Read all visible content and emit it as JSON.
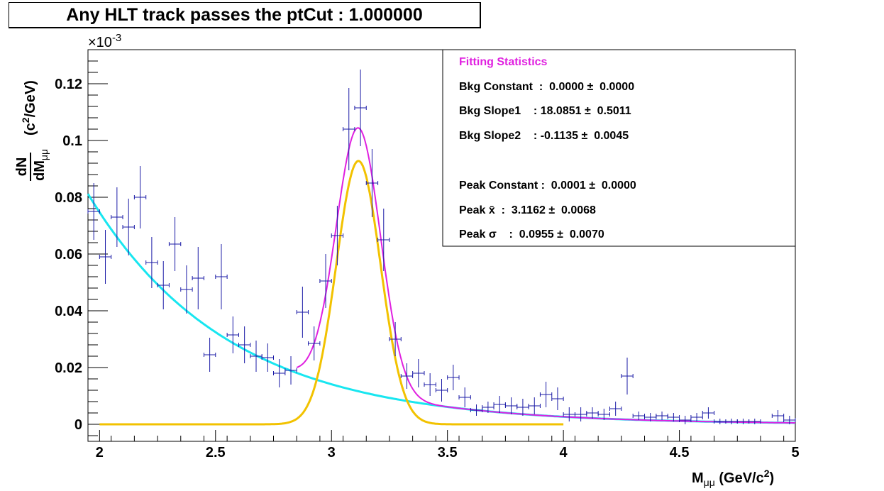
{
  "chart_data": {
    "type": "scatter",
    "title": "Any HLT track passes the ptCut : 1.000000",
    "xlabel": {
      "main": "M",
      "sub": "μμ",
      "unit": "(GeV/c",
      "sup": "2",
      "close": ")"
    },
    "ylabel": {
      "num": "dN",
      "den": "dM",
      "den_sub": "μμ",
      "unit": "(c",
      "sup": "2",
      "close": "/GeV)"
    },
    "xlim": [
      1.95,
      5.0
    ],
    "ylim": [
      -0.006,
      0.132
    ],
    "y_scale_label": "×10",
    "y_scale_exponent": "-3",
    "x_ticks": [
      2,
      2.5,
      3,
      3.5,
      4,
      4.5,
      5
    ],
    "x_tick_labels": [
      "2",
      "2.5",
      "3",
      "3.5",
      "4",
      "4.5",
      "5"
    ],
    "y_ticks": [
      0,
      0.02,
      0.04,
      0.06,
      0.08,
      0.1,
      0.12
    ],
    "y_tick_labels": [
      "0",
      "0.02",
      "0.04",
      "0.06",
      "0.08",
      "0.1",
      "0.12"
    ],
    "bin_half_width": 0.025,
    "points": [
      {
        "x": 1.975,
        "y": 0.075,
        "e": 0.01
      },
      {
        "x": 2.025,
        "y": 0.059,
        "e": 0.0095
      },
      {
        "x": 2.075,
        "y": 0.073,
        "e": 0.0105
      },
      {
        "x": 2.125,
        "y": 0.0695,
        "e": 0.01
      },
      {
        "x": 2.175,
        "y": 0.08,
        "e": 0.011
      },
      {
        "x": 2.225,
        "y": 0.057,
        "e": 0.009
      },
      {
        "x": 2.275,
        "y": 0.049,
        "e": 0.0085
      },
      {
        "x": 2.325,
        "y": 0.0635,
        "e": 0.0095
      },
      {
        "x": 2.375,
        "y": 0.0475,
        "e": 0.0085
      },
      {
        "x": 2.425,
        "y": 0.0515,
        "e": 0.011
      },
      {
        "x": 2.475,
        "y": 0.0245,
        "e": 0.006
      },
      {
        "x": 2.525,
        "y": 0.052,
        "e": 0.0115
      },
      {
        "x": 2.575,
        "y": 0.0315,
        "e": 0.0065
      },
      {
        "x": 2.625,
        "y": 0.028,
        "e": 0.0065
      },
      {
        "x": 2.675,
        "y": 0.024,
        "e": 0.0055
      },
      {
        "x": 2.725,
        "y": 0.0235,
        "e": 0.005
      },
      {
        "x": 2.775,
        "y": 0.018,
        "e": 0.005
      },
      {
        "x": 2.825,
        "y": 0.019,
        "e": 0.005
      },
      {
        "x": 2.875,
        "y": 0.0395,
        "e": 0.009
      },
      {
        "x": 2.925,
        "y": 0.0285,
        "e": 0.006
      },
      {
        "x": 2.975,
        "y": 0.0505,
        "e": 0.0095
      },
      {
        "x": 3.025,
        "y": 0.0665,
        "e": 0.0105
      },
      {
        "x": 3.075,
        "y": 0.104,
        "e": 0.0145
      },
      {
        "x": 3.125,
        "y": 0.1115,
        "e": 0.0135
      },
      {
        "x": 3.175,
        "y": 0.085,
        "e": 0.012
      },
      {
        "x": 3.225,
        "y": 0.065,
        "e": 0.011
      },
      {
        "x": 3.275,
        "y": 0.03,
        "e": 0.006
      },
      {
        "x": 3.325,
        "y": 0.017,
        "e": 0.0045
      },
      {
        "x": 3.375,
        "y": 0.018,
        "e": 0.005
      },
      {
        "x": 3.425,
        "y": 0.014,
        "e": 0.004
      },
      {
        "x": 3.475,
        "y": 0.012,
        "e": 0.004
      },
      {
        "x": 3.525,
        "y": 0.0165,
        "e": 0.0045
      },
      {
        "x": 3.575,
        "y": 0.0095,
        "e": 0.0035
      },
      {
        "x": 3.625,
        "y": 0.005,
        "e": 0.002
      },
      {
        "x": 3.675,
        "y": 0.006,
        "e": 0.002
      },
      {
        "x": 3.725,
        "y": 0.007,
        "e": 0.003
      },
      {
        "x": 3.775,
        "y": 0.0065,
        "e": 0.003
      },
      {
        "x": 3.825,
        "y": 0.006,
        "e": 0.003
      },
      {
        "x": 3.875,
        "y": 0.0065,
        "e": 0.003
      },
      {
        "x": 3.925,
        "y": 0.0105,
        "e": 0.0045
      },
      {
        "x": 3.975,
        "y": 0.009,
        "e": 0.004
      },
      {
        "x": 4.025,
        "y": 0.0035,
        "e": 0.0025
      },
      {
        "x": 4.075,
        "y": 0.0035,
        "e": 0.0025
      },
      {
        "x": 4.125,
        "y": 0.004,
        "e": 0.002
      },
      {
        "x": 4.175,
        "y": 0.0035,
        "e": 0.002
      },
      {
        "x": 4.225,
        "y": 0.0055,
        "e": 0.0025
      },
      {
        "x": 4.275,
        "y": 0.017,
        "e": 0.0065
      },
      {
        "x": 4.325,
        "y": 0.003,
        "e": 0.0015
      },
      {
        "x": 4.375,
        "y": 0.0025,
        "e": 0.0015
      },
      {
        "x": 4.425,
        "y": 0.003,
        "e": 0.0015
      },
      {
        "x": 4.475,
        "y": 0.0025,
        "e": 0.0015
      },
      {
        "x": 4.525,
        "y": 0.0015,
        "e": 0.0015
      },
      {
        "x": 4.575,
        "y": 0.0025,
        "e": 0.0015
      },
      {
        "x": 4.625,
        "y": 0.004,
        "e": 0.002
      },
      {
        "x": 4.675,
        "y": 0.001,
        "e": 0.001
      },
      {
        "x": 4.725,
        "y": 0.001,
        "e": 0.001
      },
      {
        "x": 4.775,
        "y": 0.001,
        "e": 0.001
      },
      {
        "x": 4.825,
        "y": 0.001,
        "e": 0.001
      },
      {
        "x": 4.925,
        "y": 0.003,
        "e": 0.002
      },
      {
        "x": 4.975,
        "y": 0.0015,
        "e": 0.0015
      }
    ],
    "background_model": {
      "A": 0.0812,
      "x0": 1.95,
      "tau": 0.6,
      "offset": 0.0,
      "x_range": [
        1.95,
        5.0
      ]
    },
    "peak_model": {
      "amp": 0.0928,
      "mean": 3.1162,
      "sigma": 0.0955,
      "x_range": [
        2.0,
        4.0
      ]
    },
    "total_model": {
      "x_range": [
        2.85,
        5.0
      ]
    },
    "colors": {
      "axis": "#000000",
      "points": "#1a1aa6",
      "background_curve": "#18e6f0",
      "peak_curve": "#f2c200",
      "total_curve": "#e020e0",
      "stats_title": "#e020e0"
    },
    "stats_box": {
      "title": "Fitting Statistics",
      "lines": [
        "Bkg Constant  :  0.0000 ±  0.0000",
        "Bkg Slope1    : 18.0851 ±  0.5011",
        "Bkg Slope2    : -0.1135 ±  0.0045",
        "",
        "Peak Constant :  0.0001 ±  0.0000",
        "Peak x̄  :  3.1162 ±  0.0068",
        "Peak σ    :  0.0955 ±  0.0070"
      ]
    }
  }
}
